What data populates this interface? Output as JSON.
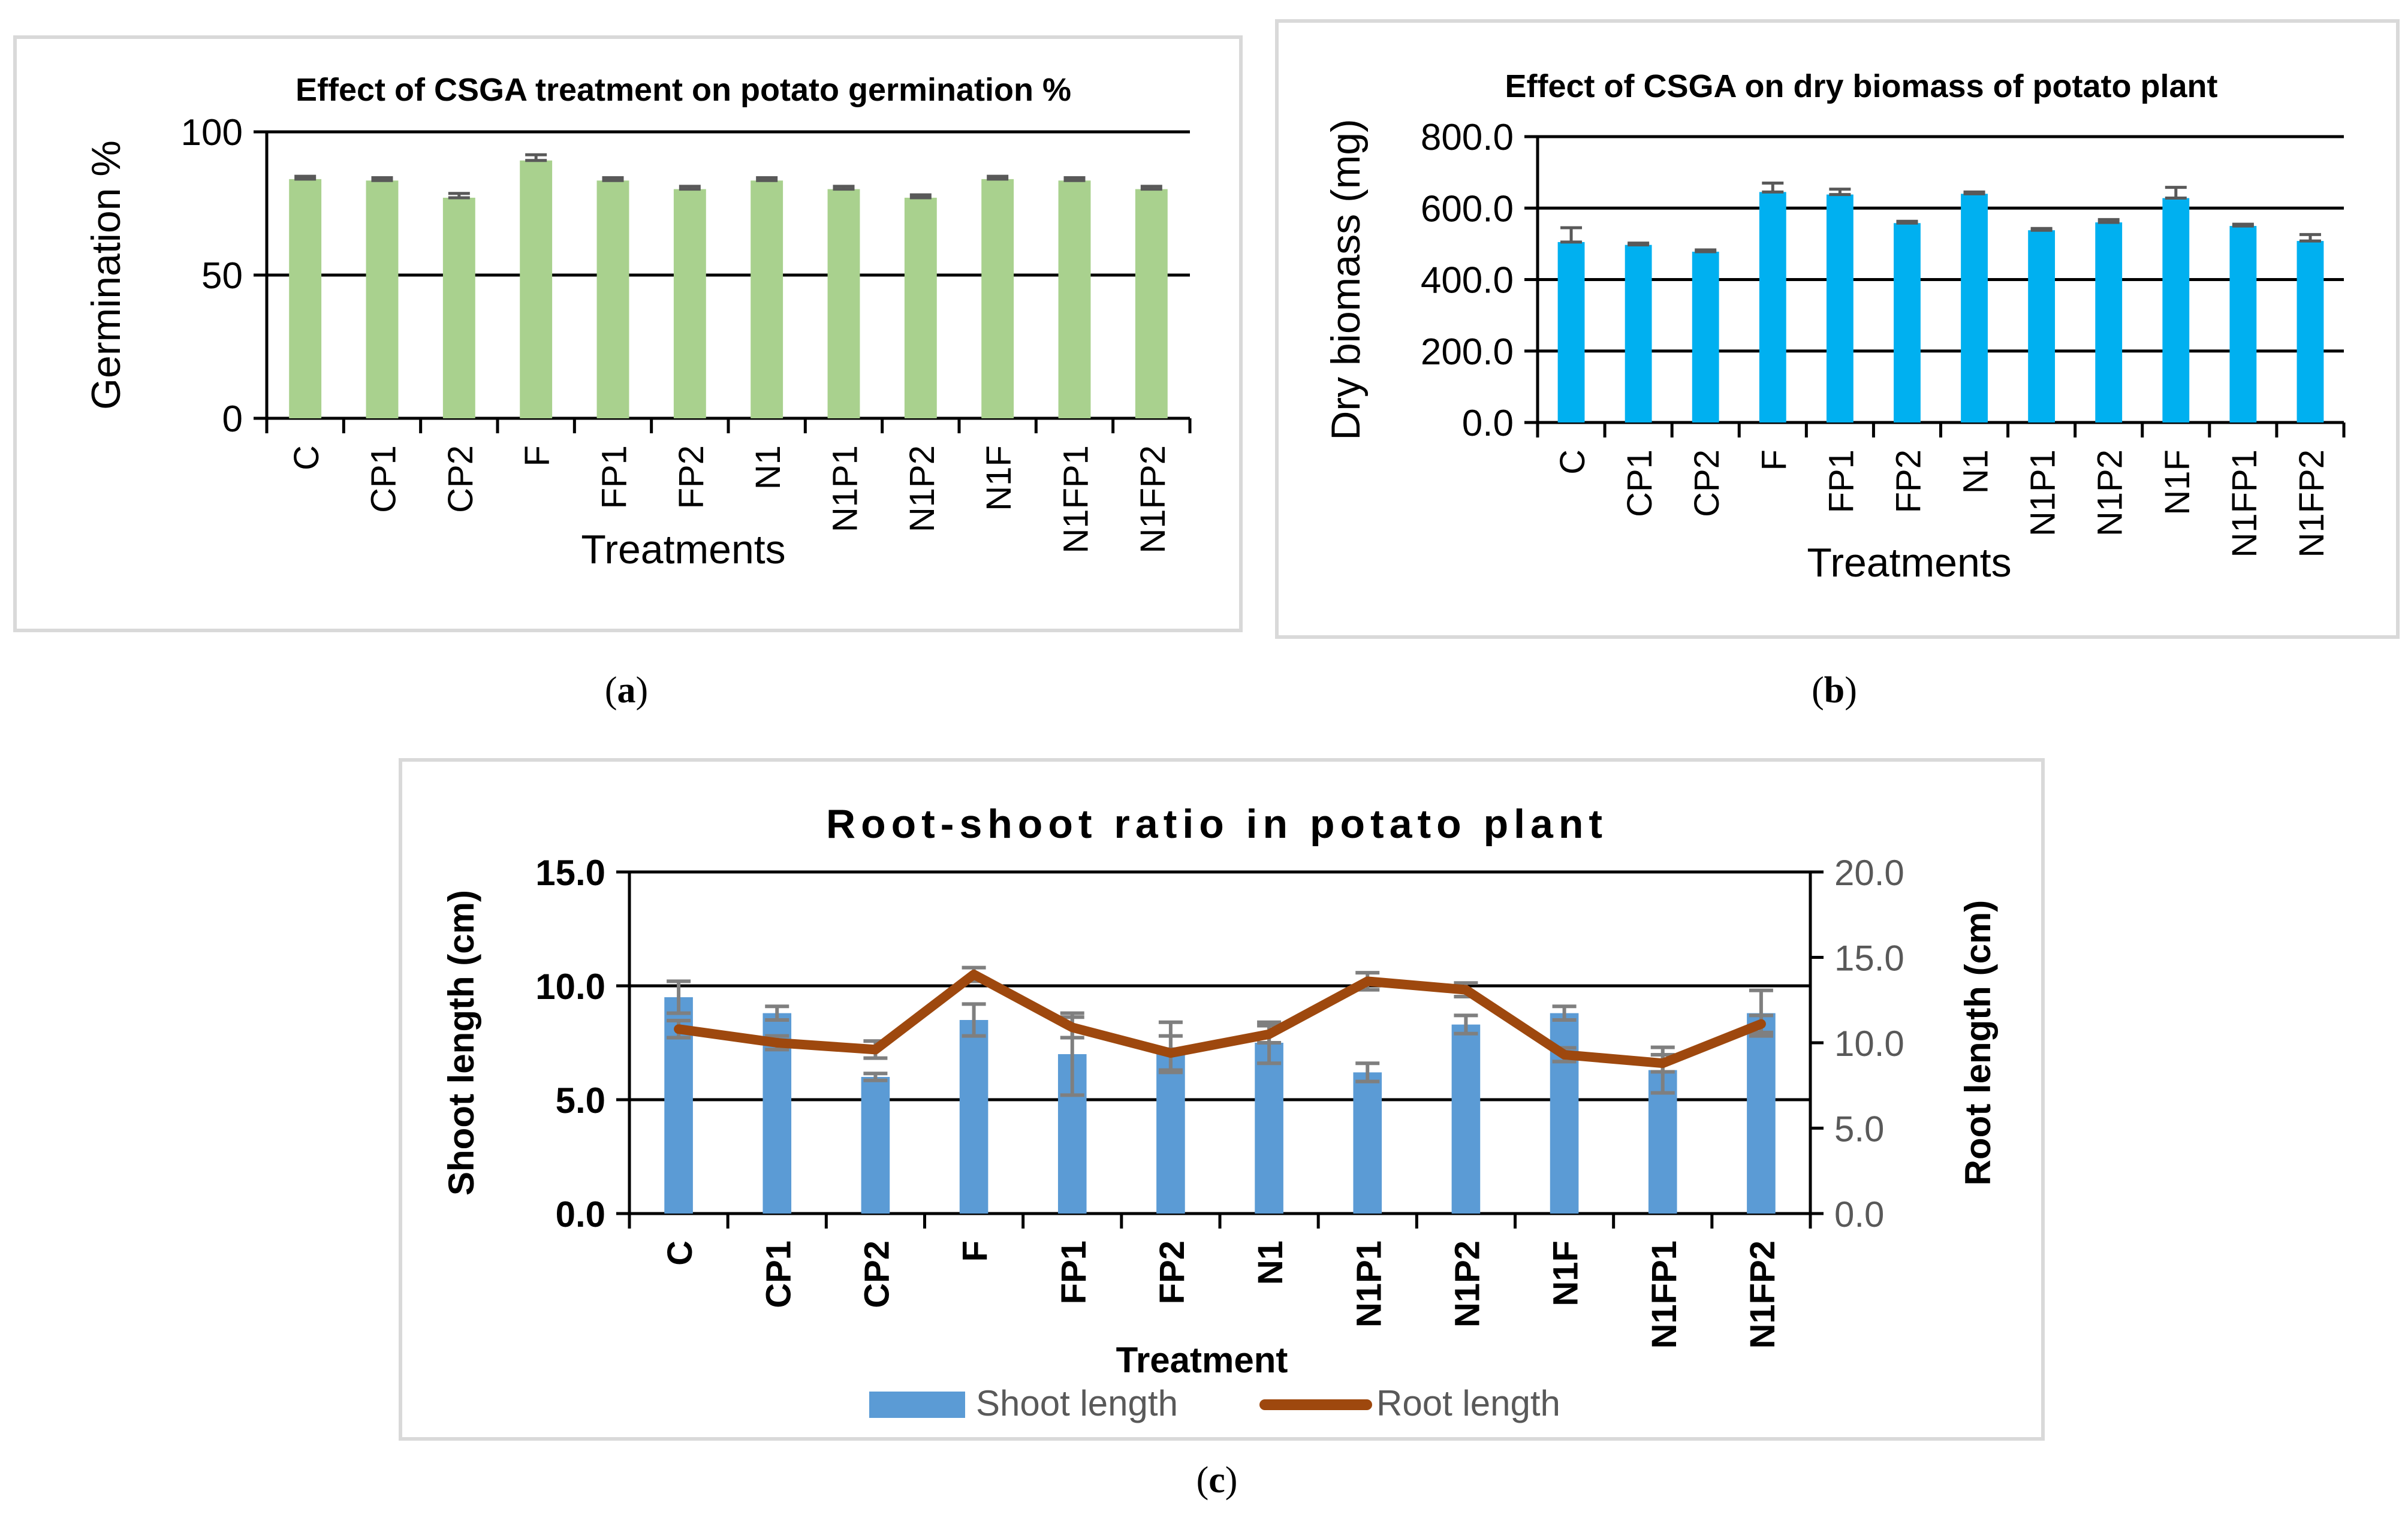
{
  "chart_data": [
    {
      "id": "a",
      "type": "bar",
      "caption_open": "(",
      "caption_letter": "a",
      "caption_close": ")",
      "title": "Effect of CSGA treatment on potato germination %",
      "xlabel": "Treatments",
      "ylabel": "Germination %",
      "categories": [
        "C",
        "CP1",
        "CP2",
        "F",
        "FP1",
        "FP2",
        "N1",
        "N1P1",
        "N1P2",
        "N1F",
        "N1FP1",
        "N1FP2"
      ],
      "values": [
        83.5,
        83.0,
        77.0,
        90.0,
        83.0,
        80.0,
        83.0,
        80.0,
        77.0,
        83.5,
        83.0,
        80.0
      ],
      "errors": [
        1.0,
        1.0,
        1.5,
        2.0,
        1.0,
        1.0,
        1.0,
        1.0,
        1.0,
        1.0,
        1.0,
        1.0
      ],
      "ylim": [
        0,
        100
      ],
      "yticks": [
        0,
        50,
        100
      ],
      "ytick_labels": [
        "0",
        "50",
        "100"
      ],
      "bar_color": "#a9d18e",
      "error_color": "#595959",
      "grid": true
    },
    {
      "id": "b",
      "type": "bar",
      "caption_open": "(",
      "caption_letter": "b",
      "caption_close": ")",
      "title": "Effect of CSGA on dry biomass of potato plant",
      "xlabel": "Treatments",
      "ylabel": "Dry biomass (mg)",
      "categories": [
        "C",
        "CP1",
        "CP2",
        "F",
        "FP1",
        "FP2",
        "N1",
        "N1P1",
        "N1P2",
        "N1F",
        "N1FP1",
        "N1FP2"
      ],
      "values": [
        505,
        497,
        478,
        645,
        638,
        558,
        640,
        538,
        560,
        628,
        550,
        508
      ],
      "errors": [
        40,
        5,
        5,
        25,
        15,
        5,
        5,
        5,
        8,
        30,
        5,
        18
      ],
      "ylim": [
        0,
        800
      ],
      "yticks": [
        0,
        200,
        400,
        600,
        800
      ],
      "ytick_labels": [
        "0.0",
        "200.0",
        "400.0",
        "600.0",
        "800.0"
      ],
      "bar_color": "#00b0f0",
      "error_color": "#595959",
      "grid": true
    },
    {
      "id": "c",
      "type": "bar+line",
      "caption_open": "(",
      "caption_letter": "c",
      "caption_close": ")",
      "title": "Root-shoot ratio in potato plant",
      "xlabel": "Treatment",
      "ylabel": "Shoot length (cm)",
      "y2label": "Root length (cm)",
      "categories": [
        "C",
        "CP1",
        "CP2",
        "F",
        "FP1",
        "FP2",
        "N1",
        "N1P1",
        "N1P2",
        "N1F",
        "N1FP1",
        "N1FP2"
      ],
      "series": [
        {
          "name": "Shoot length",
          "kind": "bar",
          "axis": "left",
          "values": [
            9.5,
            8.8,
            6.0,
            8.5,
            7.0,
            7.3,
            7.5,
            6.2,
            8.3,
            8.8,
            6.3,
            8.8
          ],
          "errors": [
            0.7,
            0.3,
            0.15,
            0.7,
            1.8,
            1.1,
            0.9,
            0.4,
            0.4,
            0.3,
            1.0,
            1.0
          ],
          "color": "#5b9bd5"
        },
        {
          "name": "Root length",
          "kind": "line",
          "axis": "right",
          "values": [
            10.8,
            10.0,
            9.6,
            14.0,
            10.9,
            9.4,
            10.5,
            13.6,
            13.1,
            9.3,
            8.8,
            11.1
          ],
          "errors": [
            0.5,
            0.4,
            0.5,
            0.4,
            0.6,
            1.0,
            0.5,
            0.5,
            0.4,
            0.4,
            0.5,
            0.5
          ],
          "color": "#9e480e"
        }
      ],
      "ylim": [
        0,
        15
      ],
      "yticks": [
        0,
        5,
        10,
        15
      ],
      "ytick_labels": [
        "0.0",
        "5.0",
        "10.0",
        "15.0"
      ],
      "y2lim": [
        0,
        20
      ],
      "y2ticks": [
        0,
        5,
        10,
        15,
        20
      ],
      "y2tick_labels": [
        "0.0",
        "5.0",
        "10.0",
        "15.0",
        "20.0"
      ],
      "error_color": "#7f7f7f",
      "legend": "bottom",
      "grid": true
    }
  ]
}
